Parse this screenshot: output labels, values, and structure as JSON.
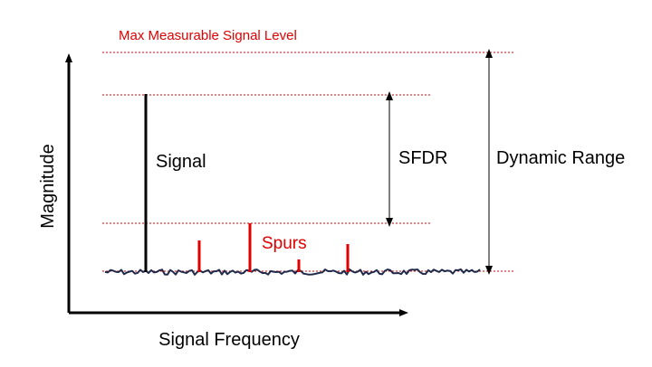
{
  "diagram": {
    "labels": {
      "max_level": "Max Measurable Signal Level",
      "signal": "Signal",
      "spurs": "Spurs",
      "sfdr": "SFDR",
      "dynamic_range": "Dynamic Range",
      "y_axis": "Magnitude",
      "x_axis": "Signal Frequency"
    },
    "colors": {
      "accent": "#e00000",
      "noise": "#1f2a4a",
      "line": "#000000",
      "guide": "#e00000"
    }
  }
}
